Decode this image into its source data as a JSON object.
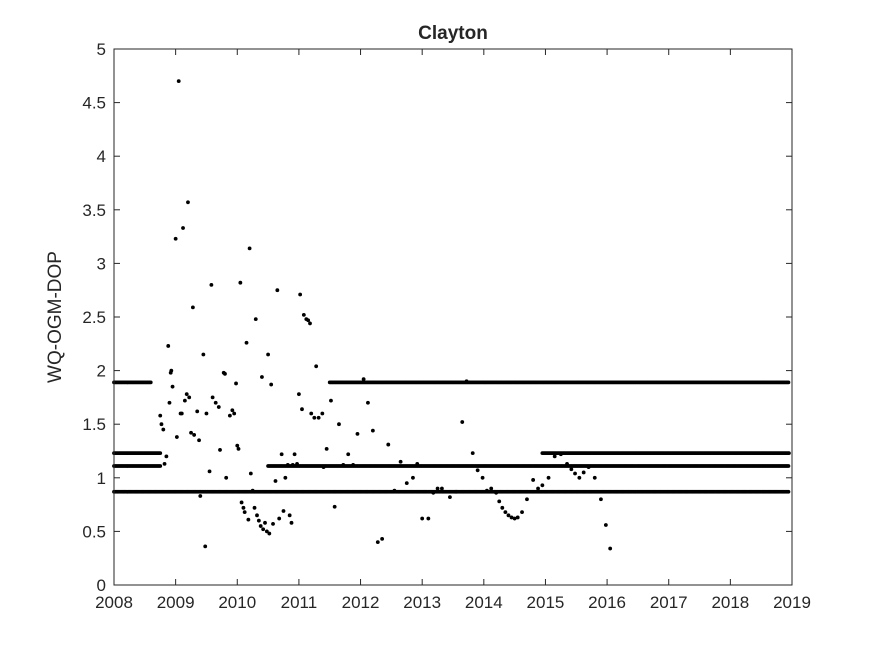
{
  "chart_data": {
    "type": "scatter",
    "title": "Clayton",
    "xlabel": "",
    "ylabel": "WQ-OGM-DOP",
    "xlim": [
      2008,
      2019
    ],
    "ylim": [
      0,
      5
    ],
    "xticks": [
      "2008",
      "2009",
      "2010",
      "2011",
      "2012",
      "2013",
      "2014",
      "2015",
      "2016",
      "2017",
      "2018",
      "2019"
    ],
    "yticks": [
      "0",
      "0.5",
      "1",
      "1.5",
      "2",
      "2.5",
      "3",
      "3.5",
      "4",
      "4.5",
      "5"
    ],
    "grid": false,
    "marker_color": "#000000",
    "series": [
      {
        "horizontal_bands": [
          {
            "y": 0.87,
            "x_start": 2008.0,
            "x_end": 2018.95
          },
          {
            "y": 1.11,
            "x_start": 2008.0,
            "x_end": 2008.75
          },
          {
            "y": 1.11,
            "x_start": 2010.5,
            "x_end": 2018.95
          },
          {
            "y": 1.23,
            "x_start": 2008.0,
            "x_end": 2008.75
          },
          {
            "y": 1.23,
            "x_start": 2014.95,
            "x_end": 2018.95
          },
          {
            "y": 1.89,
            "x_start": 2008.0,
            "x_end": 2008.6
          },
          {
            "y": 1.89,
            "x_start": 2011.5,
            "x_end": 2018.95
          }
        ],
        "points": [
          [
            2008.75,
            1.58
          ],
          [
            2008.77,
            1.5
          ],
          [
            2008.8,
            1.45
          ],
          [
            2008.82,
            1.13
          ],
          [
            2008.85,
            1.2
          ],
          [
            2008.88,
            2.23
          ],
          [
            2008.9,
            1.7
          ],
          [
            2008.92,
            1.98
          ],
          [
            2008.93,
            2.0
          ],
          [
            2008.95,
            1.85
          ],
          [
            2009.0,
            3.23
          ],
          [
            2009.02,
            1.38
          ],
          [
            2009.05,
            4.7
          ],
          [
            2009.08,
            1.6
          ],
          [
            2009.1,
            1.6
          ],
          [
            2009.12,
            3.33
          ],
          [
            2009.15,
            1.72
          ],
          [
            2009.18,
            1.78
          ],
          [
            2009.2,
            3.57
          ],
          [
            2009.22,
            1.75
          ],
          [
            2009.25,
            1.42
          ],
          [
            2009.28,
            2.59
          ],
          [
            2009.3,
            1.4
          ],
          [
            2009.35,
            1.62
          ],
          [
            2009.38,
            1.35
          ],
          [
            2009.4,
            0.83
          ],
          [
            2009.45,
            2.15
          ],
          [
            2009.48,
            0.36
          ],
          [
            2009.5,
            1.6
          ],
          [
            2009.55,
            1.06
          ],
          [
            2009.58,
            2.8
          ],
          [
            2009.6,
            1.75
          ],
          [
            2009.65,
            1.7
          ],
          [
            2009.7,
            1.66
          ],
          [
            2009.72,
            1.26
          ],
          [
            2009.78,
            1.98
          ],
          [
            2009.8,
            1.97
          ],
          [
            2009.82,
            1.0
          ],
          [
            2009.88,
            1.58
          ],
          [
            2009.92,
            1.63
          ],
          [
            2009.95,
            1.6
          ],
          [
            2009.98,
            1.88
          ],
          [
            2010.0,
            1.3
          ],
          [
            2010.02,
            1.27
          ],
          [
            2010.05,
            2.82
          ],
          [
            2010.07,
            0.77
          ],
          [
            2010.1,
            0.72
          ],
          [
            2010.12,
            0.68
          ],
          [
            2010.15,
            2.26
          ],
          [
            2010.18,
            0.61
          ],
          [
            2010.2,
            3.14
          ],
          [
            2010.22,
            1.04
          ],
          [
            2010.25,
            0.88
          ],
          [
            2010.28,
            0.72
          ],
          [
            2010.3,
            2.48
          ],
          [
            2010.32,
            0.65
          ],
          [
            2010.35,
            0.6
          ],
          [
            2010.38,
            0.55
          ],
          [
            2010.4,
            1.94
          ],
          [
            2010.42,
            0.52
          ],
          [
            2010.45,
            0.58
          ],
          [
            2010.48,
            0.5
          ],
          [
            2010.5,
            2.15
          ],
          [
            2010.52,
            0.48
          ],
          [
            2010.55,
            1.87
          ],
          [
            2010.58,
            0.57
          ],
          [
            2010.62,
            0.97
          ],
          [
            2010.65,
            2.75
          ],
          [
            2010.68,
            0.62
          ],
          [
            2010.72,
            1.22
          ],
          [
            2010.75,
            0.69
          ],
          [
            2010.78,
            1.0
          ],
          [
            2010.82,
            1.12
          ],
          [
            2010.85,
            0.65
          ],
          [
            2010.88,
            0.58
          ],
          [
            2010.9,
            1.12
          ],
          [
            2010.93,
            1.22
          ],
          [
            2010.97,
            1.13
          ],
          [
            2011.0,
            1.78
          ],
          [
            2011.02,
            2.71
          ],
          [
            2011.05,
            1.64
          ],
          [
            2011.08,
            2.52
          ],
          [
            2011.12,
            2.48
          ],
          [
            2011.15,
            2.47
          ],
          [
            2011.18,
            2.44
          ],
          [
            2011.2,
            1.6
          ],
          [
            2011.25,
            1.56
          ],
          [
            2011.28,
            2.04
          ],
          [
            2011.32,
            1.56
          ],
          [
            2011.38,
            1.6
          ],
          [
            2011.4,
            1.1
          ],
          [
            2011.45,
            1.27
          ],
          [
            2011.52,
            1.72
          ],
          [
            2011.58,
            0.73
          ],
          [
            2011.65,
            1.5
          ],
          [
            2011.72,
            1.12
          ],
          [
            2011.8,
            1.22
          ],
          [
            2011.88,
            1.12
          ],
          [
            2011.95,
            1.41
          ],
          [
            2012.05,
            1.92
          ],
          [
            2012.12,
            1.7
          ],
          [
            2012.2,
            1.44
          ],
          [
            2012.28,
            0.4
          ],
          [
            2012.35,
            0.43
          ],
          [
            2012.45,
            1.31
          ],
          [
            2012.55,
            0.88
          ],
          [
            2012.65,
            1.15
          ],
          [
            2012.75,
            0.95
          ],
          [
            2012.85,
            1.0
          ],
          [
            2012.92,
            1.13
          ],
          [
            2013.0,
            0.62
          ],
          [
            2013.1,
            0.62
          ],
          [
            2013.18,
            0.86
          ],
          [
            2013.25,
            0.9
          ],
          [
            2013.32,
            0.9
          ],
          [
            2013.45,
            0.82
          ],
          [
            2013.55,
            0.87
          ],
          [
            2013.65,
            1.52
          ],
          [
            2013.72,
            1.9
          ],
          [
            2013.82,
            1.23
          ],
          [
            2013.9,
            1.07
          ],
          [
            2013.98,
            1.0
          ],
          [
            2014.05,
            0.88
          ],
          [
            2014.12,
            0.9
          ],
          [
            2014.2,
            0.86
          ],
          [
            2014.25,
            0.78
          ],
          [
            2014.3,
            0.72
          ],
          [
            2014.35,
            0.68
          ],
          [
            2014.4,
            0.65
          ],
          [
            2014.45,
            0.63
          ],
          [
            2014.5,
            0.62
          ],
          [
            2014.55,
            0.63
          ],
          [
            2014.62,
            0.68
          ],
          [
            2014.7,
            0.8
          ],
          [
            2014.8,
            0.98
          ],
          [
            2014.88,
            0.9
          ],
          [
            2014.95,
            0.93
          ],
          [
            2015.05,
            1.0
          ],
          [
            2015.15,
            1.2
          ],
          [
            2015.25,
            1.22
          ],
          [
            2015.35,
            1.13
          ],
          [
            2015.42,
            1.08
          ],
          [
            2015.48,
            1.04
          ],
          [
            2015.55,
            1.0
          ],
          [
            2015.62,
            1.05
          ],
          [
            2015.7,
            1.1
          ],
          [
            2015.8,
            1.0
          ],
          [
            2015.9,
            0.8
          ],
          [
            2015.98,
            0.56
          ],
          [
            2016.05,
            0.34
          ]
        ]
      }
    ]
  }
}
